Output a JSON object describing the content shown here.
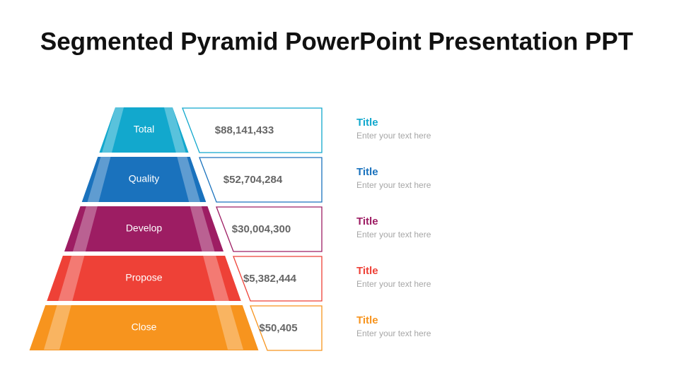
{
  "header": {
    "title": "Segmented Pyramid PowerPoint Presentation PPT"
  },
  "levels": [
    {
      "label": "Total",
      "value": "$88,141,433",
      "title": "Title",
      "text": "Enter your text here",
      "color": "#12a8cd"
    },
    {
      "label": "Quality",
      "value": "$52,704,284",
      "title": "Title",
      "text": "Enter your text here",
      "color": "#1a72bd"
    },
    {
      "label": "Develop",
      "value": "$30,004,300",
      "title": "Title",
      "text": "Enter your text here",
      "color": "#9d1d63"
    },
    {
      "label": "Propose",
      "value": "$5,382,444",
      "title": "Title",
      "text": "Enter your text here",
      "color": "#ee4137"
    },
    {
      "label": "Close",
      "value": "$50,405",
      "title": "Title",
      "text": "Enter your text here",
      "color": "#f7941e"
    }
  ]
}
